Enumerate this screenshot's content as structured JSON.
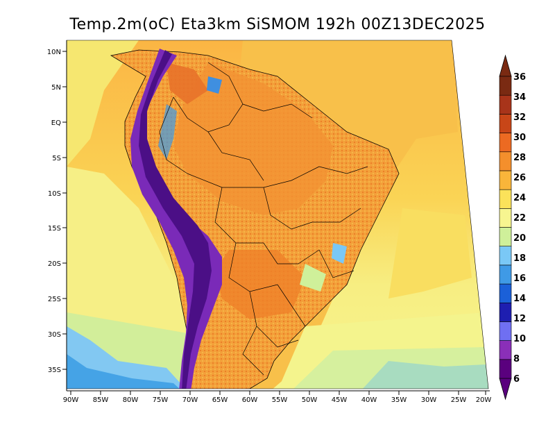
{
  "map": {
    "title": "Temp.2m(oC) Eta3km SiSMOM 192h 00Z13DEC2025",
    "variable": "Temp.2m",
    "units": "oC",
    "model": "Eta3km SiSMOM",
    "forecast_hour": "192h",
    "valid_time": "00Z13DEC2025",
    "lat_ticks": [
      "10N",
      "5N",
      "EQ",
      "5S",
      "10S",
      "15S",
      "20S",
      "25S",
      "30S",
      "35S"
    ],
    "lon_ticks": [
      "90W",
      "85W",
      "80W",
      "75W",
      "70W",
      "65W",
      "60W",
      "55W",
      "50W",
      "45W",
      "40W",
      "35W",
      "30W",
      "25W",
      "20W"
    ]
  },
  "colorbar": {
    "levels": [
      "6",
      "8",
      "10",
      "12",
      "14",
      "16",
      "18",
      "20",
      "22",
      "24",
      "26",
      "28",
      "30",
      "32",
      "34",
      "36"
    ],
    "colors": [
      "#5a007e",
      "#8a2fb8",
      "#6f6ff2",
      "#1e1eb0",
      "#1b60d8",
      "#3f9ae6",
      "#7ac8f6",
      "#cff09a",
      "#f7f590",
      "#fbe25a",
      "#f9b53a",
      "#f48f2c",
      "#ec6a22",
      "#c84618",
      "#a8341a",
      "#7a2a12"
    ]
  },
  "colors": {
    "ocean_warm": "#fbb041",
    "ocean_mild": "#f9e062",
    "ocean_cool": "#f6f38d",
    "ocean_cold": "#cfef9c",
    "land_hot": "#f08a2c",
    "andes": "#6a1cb0"
  }
}
